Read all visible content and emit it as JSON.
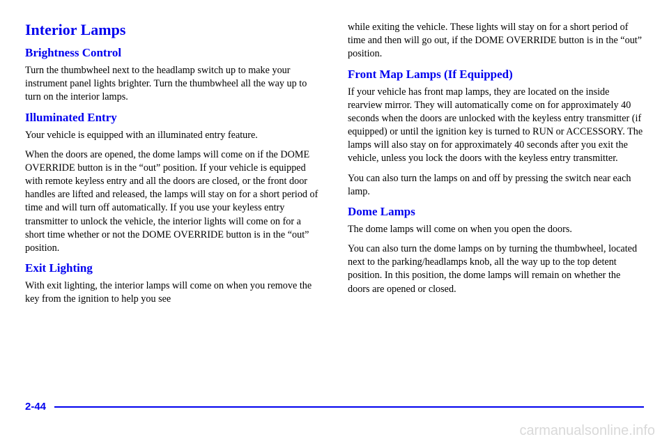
{
  "col1": {
    "h1": "Interior Lamps",
    "s1": {
      "h": "Brightness Control",
      "p1": "Turn the thumbwheel next to the headlamp switch up to make your instrument panel lights brighter. Turn the thumbwheel all the way up to turn on the interior lamps."
    },
    "s2": {
      "h": "Illuminated Entry",
      "p1": "Your vehicle is equipped with an illuminated entry feature.",
      "p2": "When the doors are opened, the dome lamps will come on if the DOME OVERRIDE button is in the “out” position. If your vehicle is equipped with remote keyless entry and all the doors are closed, or the front door handles are lifted and released, the lamps will stay on for a short period of time and will turn off automatically. If you use your keyless entry transmitter to unlock the vehicle, the interior lights will come on for a short time whether or not the DOME OVERRIDE button is in the “out” position."
    },
    "s3": {
      "h": "Exit Lighting",
      "p1": "With exit lighting, the interior lamps will come on when you remove the key from the ignition to help you see"
    }
  },
  "col2": {
    "p0": "while exiting the vehicle. These lights will stay on for a short period of time and then will go out, if the DOME OVERRIDE button is in the “out” position.",
    "s1": {
      "h": "Front Map Lamps (If Equipped)",
      "p1": "If your vehicle has front map lamps, they are located on the inside rearview mirror. They will automatically come on for approximately 40 seconds when the doors are unlocked with the keyless entry transmitter (if equipped) or until the ignition key is turned to RUN or ACCESSORY. The lamps will also stay on for approximately 40 seconds after you exit the vehicle, unless you lock the doors with the keyless entry transmitter.",
      "p2": "You can also turn the lamps on and off by pressing the switch near each lamp."
    },
    "s2": {
      "h": "Dome Lamps",
      "p1": "The dome lamps will come on when you open the doors.",
      "p2": "You can also turn the dome lamps on by turning the thumbwheel, located next to the parking/headlamps knob, all the way up to the top detent position. In this position, the dome lamps will remain on whether the doors are opened or closed."
    }
  },
  "pageNumber": "2-44",
  "watermark": "carmanualsonline.info",
  "colors": {
    "link": "#0000ee",
    "text": "#000000",
    "watermark": "#d9d9d9",
    "background": "#ffffff"
  }
}
